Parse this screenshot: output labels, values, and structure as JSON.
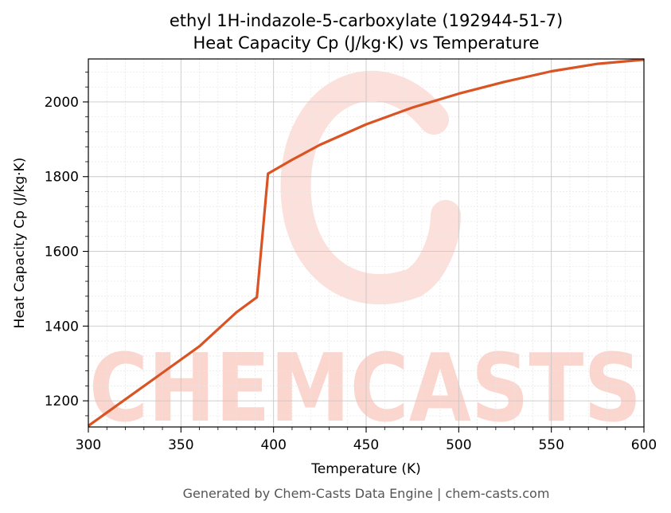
{
  "footer": "Generated by Chem-Casts Data Engine | chem-casts.com",
  "watermark": {
    "text": "CHEMCASTS",
    "color": "#fbd6cf"
  },
  "chart_data": {
    "type": "line",
    "title": "ethyl 1H-indazole-5-carboxylate (192944-51-7)",
    "subtitle": "Heat Capacity Cp (J/kg·K) vs Temperature",
    "xlabel": "Temperature (K)",
    "ylabel": "Heat Capacity Cp (J/kg·K)",
    "xlim": [
      300,
      600
    ],
    "ylim": [
      1130,
      2115
    ],
    "xticks": [
      300,
      350,
      400,
      450,
      500,
      550,
      600
    ],
    "yticks": [
      1200,
      1400,
      1600,
      1800,
      2000
    ],
    "grid": true,
    "line_color": "#d95323",
    "series": [
      {
        "x": [
          300,
          320,
          340,
          360,
          380,
          391,
          397,
          410,
          425,
          450,
          475,
          500,
          525,
          550,
          575,
          600
        ],
        "y": [
          1133,
          1204,
          1275,
          1346,
          1437,
          1477,
          1808,
          1845,
          1885,
          1940,
          1985,
          2022,
          2054,
          2082,
          2102,
          2113
        ]
      }
    ]
  }
}
